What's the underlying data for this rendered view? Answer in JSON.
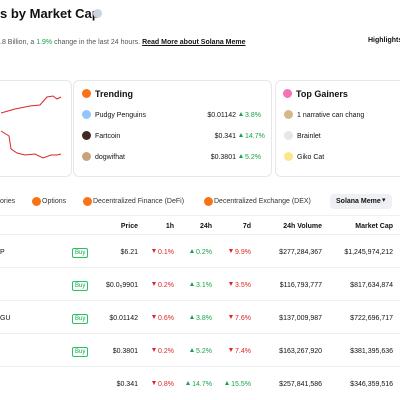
{
  "header": {
    "title": "s by Market Cap",
    "subtitle_start": ".8 Billion, a ",
    "subtitle_change": "1.9%",
    "subtitle_end": " change in the last 24 hours. ",
    "read_more": "Read More about Solana Meme",
    "highlights": "Highlights"
  },
  "trending": {
    "title": "Trending",
    "rows": [
      {
        "name": "Pudgy Penguins",
        "price": "$0.01142",
        "change": "3.8%",
        "trend": "up"
      },
      {
        "name": "Fartcoin",
        "price": "$0.341",
        "change": "14.7%",
        "trend": "up"
      },
      {
        "name": "dogwifhat",
        "price": "$0.3801",
        "change": "5.2%",
        "trend": "up"
      }
    ]
  },
  "gainers": {
    "title": "Top Gainers",
    "rows": [
      "1 narrative can chang",
      "Brainlet",
      "Giko Cat"
    ]
  },
  "tabs": [
    "ories",
    "Options",
    "Decentralized Finance (DeFi)",
    "Decentralized Exchange (DEX)"
  ],
  "selected_tab": "Solana Meme",
  "table": {
    "columns": [
      "Price",
      "1h",
      "24h",
      "7d",
      "24h Volume",
      "Market Cap"
    ],
    "rows": [
      {
        "name": "P",
        "buy": "Buy",
        "price": "$6.21",
        "h1": {
          "text": "0.1%",
          "trend": "down"
        },
        "h24": {
          "text": "0.2%",
          "trend": "up"
        },
        "d7": {
          "text": "9.9%",
          "trend": "down"
        },
        "volume": "$277,284,367",
        "cap": "$1,245,974,212"
      },
      {
        "name": "",
        "buy": "Buy",
        "price": "$0.0₅9901",
        "h1": {
          "text": "0.2%",
          "trend": "down"
        },
        "h24": {
          "text": "3.1%",
          "trend": "up"
        },
        "d7": {
          "text": "3.5%",
          "trend": "down"
        },
        "volume": "$116,793,777",
        "cap": "$817,634,874"
      },
      {
        "name": "GU",
        "buy": "Buy",
        "price": "$0.01142",
        "h1": {
          "text": "0.6%",
          "trend": "down"
        },
        "h24": {
          "text": "3.8%",
          "trend": "up"
        },
        "d7": {
          "text": "7.6%",
          "trend": "down"
        },
        "volume": "$137,009,987",
        "cap": "$722,696,717"
      },
      {
        "name": "",
        "buy": "Buy",
        "price": "$0.3801",
        "h1": {
          "text": "0.2%",
          "trend": "down"
        },
        "h24": {
          "text": "5.2%",
          "trend": "up"
        },
        "d7": {
          "text": "7.4%",
          "trend": "down"
        },
        "volume": "$163,267,920",
        "cap": "$381,395,636"
      },
      {
        "name": "",
        "buy": "",
        "price": "$0.341",
        "h1": {
          "text": "0.8%",
          "trend": "down"
        },
        "h24": {
          "text": "14.7%",
          "trend": "up"
        },
        "d7": {
          "text": "15.5%",
          "trend": "up"
        },
        "volume": "$257,841,586",
        "cap": "$346,359,516"
      }
    ]
  }
}
